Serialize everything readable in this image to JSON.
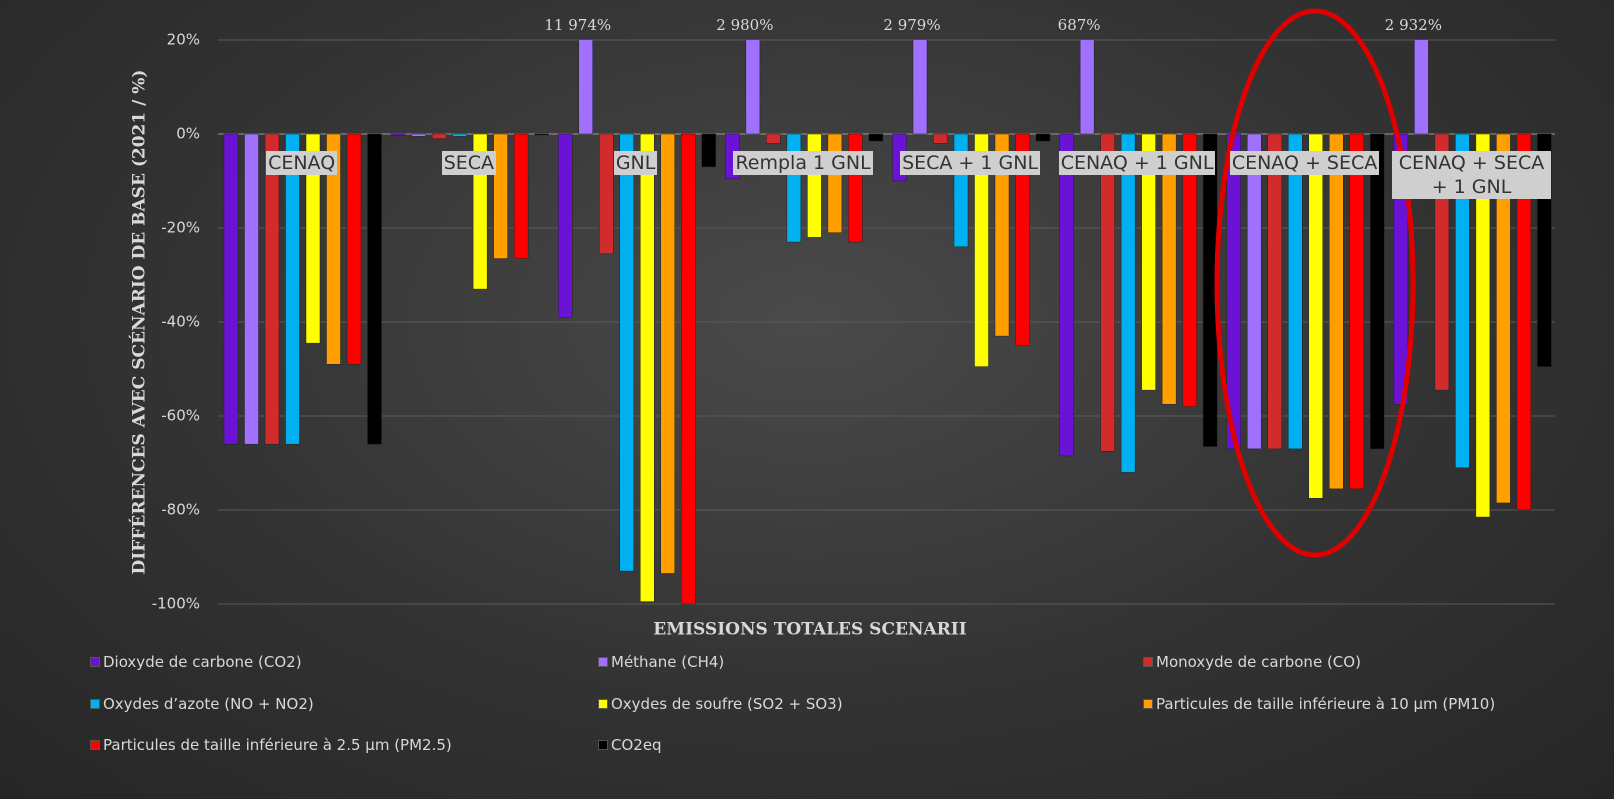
{
  "chart_data": {
    "type": "bar",
    "x_label": "EMISSIONS TOTALES SCENARII",
    "y_label": "DIFFÉRENCES AVEC SCÉNARIO DE BASE (2021 / %)",
    "categories": [
      "CENAQ",
      "SECA",
      "GNL",
      "Rempla 1 GNL",
      "SECA + 1 GNL",
      "CENAQ + 1 GNL",
      "CENAQ + SECA",
      "CENAQ + SECA + 1 GNL"
    ],
    "ylim": [
      -100,
      20
    ],
    "yticks": [
      {
        "value": 20,
        "label": "20%"
      },
      {
        "value": 0,
        "label": "0%"
      },
      {
        "value": -20,
        "label": "-20%"
      },
      {
        "value": -40,
        "label": "-40%"
      },
      {
        "value": -60,
        "label": "-60%"
      },
      {
        "value": -80,
        "label": "-80%"
      },
      {
        "value": -100,
        "label": "-100%"
      }
    ],
    "grid": true,
    "series": [
      {
        "name": "Dioxyde de carbone (CO2)",
        "color": "#6a12d6",
        "values": [
          -66,
          -0.3,
          -39,
          -9.5,
          -10,
          -68.5,
          -67,
          -57.5
        ]
      },
      {
        "name": "Méthane (CH4)",
        "color": "#a070ff",
        "values": [
          -66,
          -0.5,
          11974,
          2980,
          2979,
          687,
          -67,
          2932
        ],
        "value_labels": [
          null,
          null,
          "11 974%",
          "2 980%",
          "2 979%",
          "687%",
          null,
          "2 932%"
        ]
      },
      {
        "name": "Monoxyde de carbone (CO)",
        "color": "#d22b2b",
        "values": [
          -66,
          -1,
          -25.5,
          -2,
          -2,
          -67.5,
          -67,
          -54.5
        ]
      },
      {
        "name": "Oxydes d’azote (NO + NO2)",
        "color": "#00b0f0",
        "values": [
          -66,
          -0.5,
          -93,
          -23,
          -24,
          -72,
          -67,
          -71
        ]
      },
      {
        "name": "Oxydes de soufre (SO2 + SO3)",
        "color": "#ffff00",
        "values": [
          -44.5,
          -33,
          -99.5,
          -22,
          -49.5,
          -54.5,
          -77.5,
          -81.5
        ]
      },
      {
        "name": "Particules de taille inférieure à 10 µm (PM10)",
        "color": "#ffa000",
        "values": [
          -49,
          -26.5,
          -93.5,
          -21,
          -43,
          -57.5,
          -75.5,
          -78.5
        ]
      },
      {
        "name": "Particules de taille inférieure à 2.5 µm (PM2.5)",
        "color": "#ff0000",
        "values": [
          -49,
          -26.5,
          -100,
          -23,
          -45,
          -58,
          -75.5,
          -80
        ]
      },
      {
        "name": "CO2eq",
        "color": "#000000",
        "values": [
          -66,
          -0.2,
          -7,
          -1.5,
          -1.5,
          -66.5,
          -67,
          -49.5
        ]
      }
    ]
  }
}
